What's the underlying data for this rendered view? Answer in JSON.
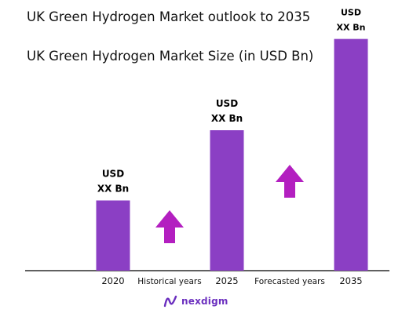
{
  "title": "UK Green Hydrogen Market outlook to 2035",
  "subtitle": "UK Green Hydrogen Market Size (in USD Bn)",
  "brand": "nexdigm",
  "colors": {
    "bar": "#8b3fc4",
    "arrow": "#b31fc0",
    "axis": "#000000",
    "brand": "#6b2fbf"
  },
  "chart_data": {
    "type": "bar",
    "categories": [
      "2020",
      "2025",
      "2035"
    ],
    "values": [
      1,
      2,
      3.3
    ],
    "data_labels": [
      [
        "USD",
        "XX Bn"
      ],
      [
        "USD",
        "XX Bn"
      ],
      [
        "USD",
        "XX Bn"
      ]
    ],
    "phase_labels": [
      "Historical years",
      "Forecasted years"
    ],
    "title": "UK Green Hydrogen Market Size (in USD Bn)",
    "xlabel": "",
    "ylabel": "",
    "grid": false,
    "legend": "none"
  }
}
